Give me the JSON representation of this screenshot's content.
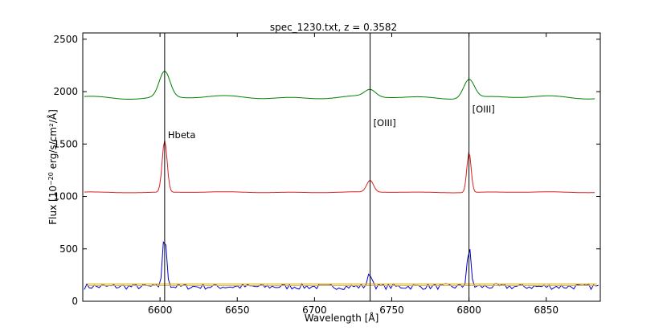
{
  "chart_data": {
    "type": "line",
    "title": "spec_1230.txt, z = 0.3582",
    "xlabel": "Wavelength [Å]",
    "ylabel_prefix": "Flux [10",
    "ylabel_exp": "−20",
    "ylabel_suffix": " erg/s/cm²/Å]",
    "xlim": [
      6550,
      6885
    ],
    "ylim": [
      0,
      2560
    ],
    "xticks": [
      6600,
      6650,
      6700,
      6750,
      6800,
      6850
    ],
    "yticks": [
      0,
      500,
      1000,
      1500,
      2000,
      2500
    ],
    "grid": false,
    "lines": [
      {
        "x": 6603,
        "label": "Hbeta"
      },
      {
        "x": 6736,
        "label": "[OIII]"
      },
      {
        "x": 6800,
        "label": "[OIII]"
      }
    ],
    "series": [
      {
        "color": "#008000",
        "baseline": 1945,
        "peaks": [
          [
            6603,
            245,
            3.5
          ],
          [
            6736,
            65,
            3.5
          ],
          [
            6800,
            180,
            3.5
          ]
        ],
        "wiggle": 18,
        "noise": 0,
        "x_start": 6551,
        "x_end": 6882
      },
      {
        "color": "#d62020",
        "baseline": 1040,
        "peaks": [
          [
            6603,
            490,
            1.6
          ],
          [
            6736,
            110,
            2.2
          ],
          [
            6800,
            380,
            1.4
          ]
        ],
        "wiggle": 5,
        "noise": 0,
        "x_start": 6551,
        "x_end": 6882
      },
      {
        "color": "#0000cc",
        "baseline": 140,
        "peaks": [
          [
            6603,
            490,
            1.3
          ],
          [
            6736,
            120,
            1.5
          ],
          [
            6800,
            380,
            1.2
          ]
        ],
        "wiggle": 0,
        "noise": 28,
        "x_start": 6551,
        "x_end": 6885
      },
      {
        "color": "#e8b020",
        "baseline": 150,
        "flat": true,
        "x_start": 6553,
        "x_end": 6883
      },
      {
        "color": "#e8b020",
        "baseline": 165,
        "flat": true,
        "x_start": 6553,
        "x_end": 6883
      }
    ]
  }
}
